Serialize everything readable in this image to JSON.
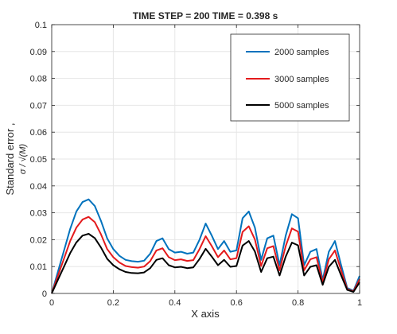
{
  "chart_data": {
    "type": "line",
    "title": "TIME STEP = 200 TIME = 0.398 s",
    "xlabel": "X axis",
    "ylabel_line1": "Standard error ,",
    "ylabel_line2": "σ / √(M)",
    "xlim": [
      0,
      1
    ],
    "ylim": [
      0,
      0.1
    ],
    "xticks": [
      0,
      0.2,
      0.4,
      0.6,
      0.8,
      1
    ],
    "xtick_labels": [
      "0",
      "0.2",
      "0.4",
      "0.6",
      "0.8",
      "1"
    ],
    "yticks": [
      0,
      0.01,
      0.02,
      0.03,
      0.04,
      0.05,
      0.06,
      0.07,
      0.08,
      0.09,
      0.1
    ],
    "ytick_labels": [
      "0",
      "0.01",
      "0.02",
      "0.03",
      "0.04",
      "0.05",
      "0.06",
      "0.07",
      "0.08",
      "0.09",
      "0.1"
    ],
    "grid": true,
    "legend_position": "top-right",
    "x": [
      0,
      0.02,
      0.04,
      0.06,
      0.08,
      0.1,
      0.12,
      0.14,
      0.16,
      0.18,
      0.2,
      0.22,
      0.24,
      0.26,
      0.28,
      0.3,
      0.32,
      0.34,
      0.36,
      0.38,
      0.4,
      0.42,
      0.44,
      0.46,
      0.48,
      0.5,
      0.52,
      0.54,
      0.56,
      0.58,
      0.6,
      0.62,
      0.64,
      0.66,
      0.68,
      0.7,
      0.72,
      0.74,
      0.76,
      0.78,
      0.8,
      0.82,
      0.84,
      0.86,
      0.88,
      0.9,
      0.92,
      0.94,
      0.96,
      0.98,
      1.0
    ],
    "series": [
      {
        "name": "2000 samples",
        "color": "#0072bd",
        "values": [
          0.0,
          0.008,
          0.016,
          0.024,
          0.0305,
          0.034,
          0.035,
          0.0325,
          0.027,
          0.0205,
          0.0165,
          0.014,
          0.0125,
          0.012,
          0.0118,
          0.0122,
          0.0148,
          0.0195,
          0.0205,
          0.0165,
          0.0152,
          0.0155,
          0.0148,
          0.0152,
          0.02,
          0.026,
          0.0215,
          0.0165,
          0.0195,
          0.0155,
          0.016,
          0.028,
          0.0305,
          0.0245,
          0.0125,
          0.0205,
          0.0215,
          0.0105,
          0.0215,
          0.0295,
          0.028,
          0.0105,
          0.0155,
          0.0165,
          0.005,
          0.0155,
          0.0195,
          0.0105,
          0.002,
          0.001,
          0.0065
        ]
      },
      {
        "name": "3000 samples",
        "color": "#e41a1c",
        "values": [
          0.0,
          0.0065,
          0.013,
          0.0195,
          0.0245,
          0.0275,
          0.0285,
          0.0265,
          0.022,
          0.0165,
          0.0135,
          0.0115,
          0.0102,
          0.0098,
          0.0096,
          0.01,
          0.012,
          0.016,
          0.0168,
          0.0135,
          0.0124,
          0.0127,
          0.0121,
          0.0124,
          0.0165,
          0.0213,
          0.0176,
          0.0135,
          0.016,
          0.0127,
          0.0131,
          0.0229,
          0.025,
          0.0201,
          0.0102,
          0.0168,
          0.0176,
          0.0086,
          0.0176,
          0.0242,
          0.023,
          0.0086,
          0.0127,
          0.0135,
          0.0041,
          0.0127,
          0.016,
          0.0086,
          0.0016,
          0.0008,
          0.0053
        ]
      },
      {
        "name": "5000 samples",
        "color": "#000000",
        "values": [
          0.0,
          0.005,
          0.01,
          0.015,
          0.019,
          0.0215,
          0.0222,
          0.0206,
          0.0171,
          0.0129,
          0.0105,
          0.009,
          0.008,
          0.0076,
          0.0075,
          0.0078,
          0.0094,
          0.0125,
          0.0131,
          0.0105,
          0.0097,
          0.0099,
          0.0094,
          0.0097,
          0.0128,
          0.0166,
          0.0137,
          0.0105,
          0.0125,
          0.0099,
          0.0102,
          0.0178,
          0.0195,
          0.0156,
          0.008,
          0.0131,
          0.0137,
          0.0067,
          0.0137,
          0.0189,
          0.0179,
          0.0067,
          0.0099,
          0.0105,
          0.0032,
          0.0099,
          0.0125,
          0.0067,
          0.0013,
          0.0006,
          0.0041
        ]
      }
    ]
  }
}
